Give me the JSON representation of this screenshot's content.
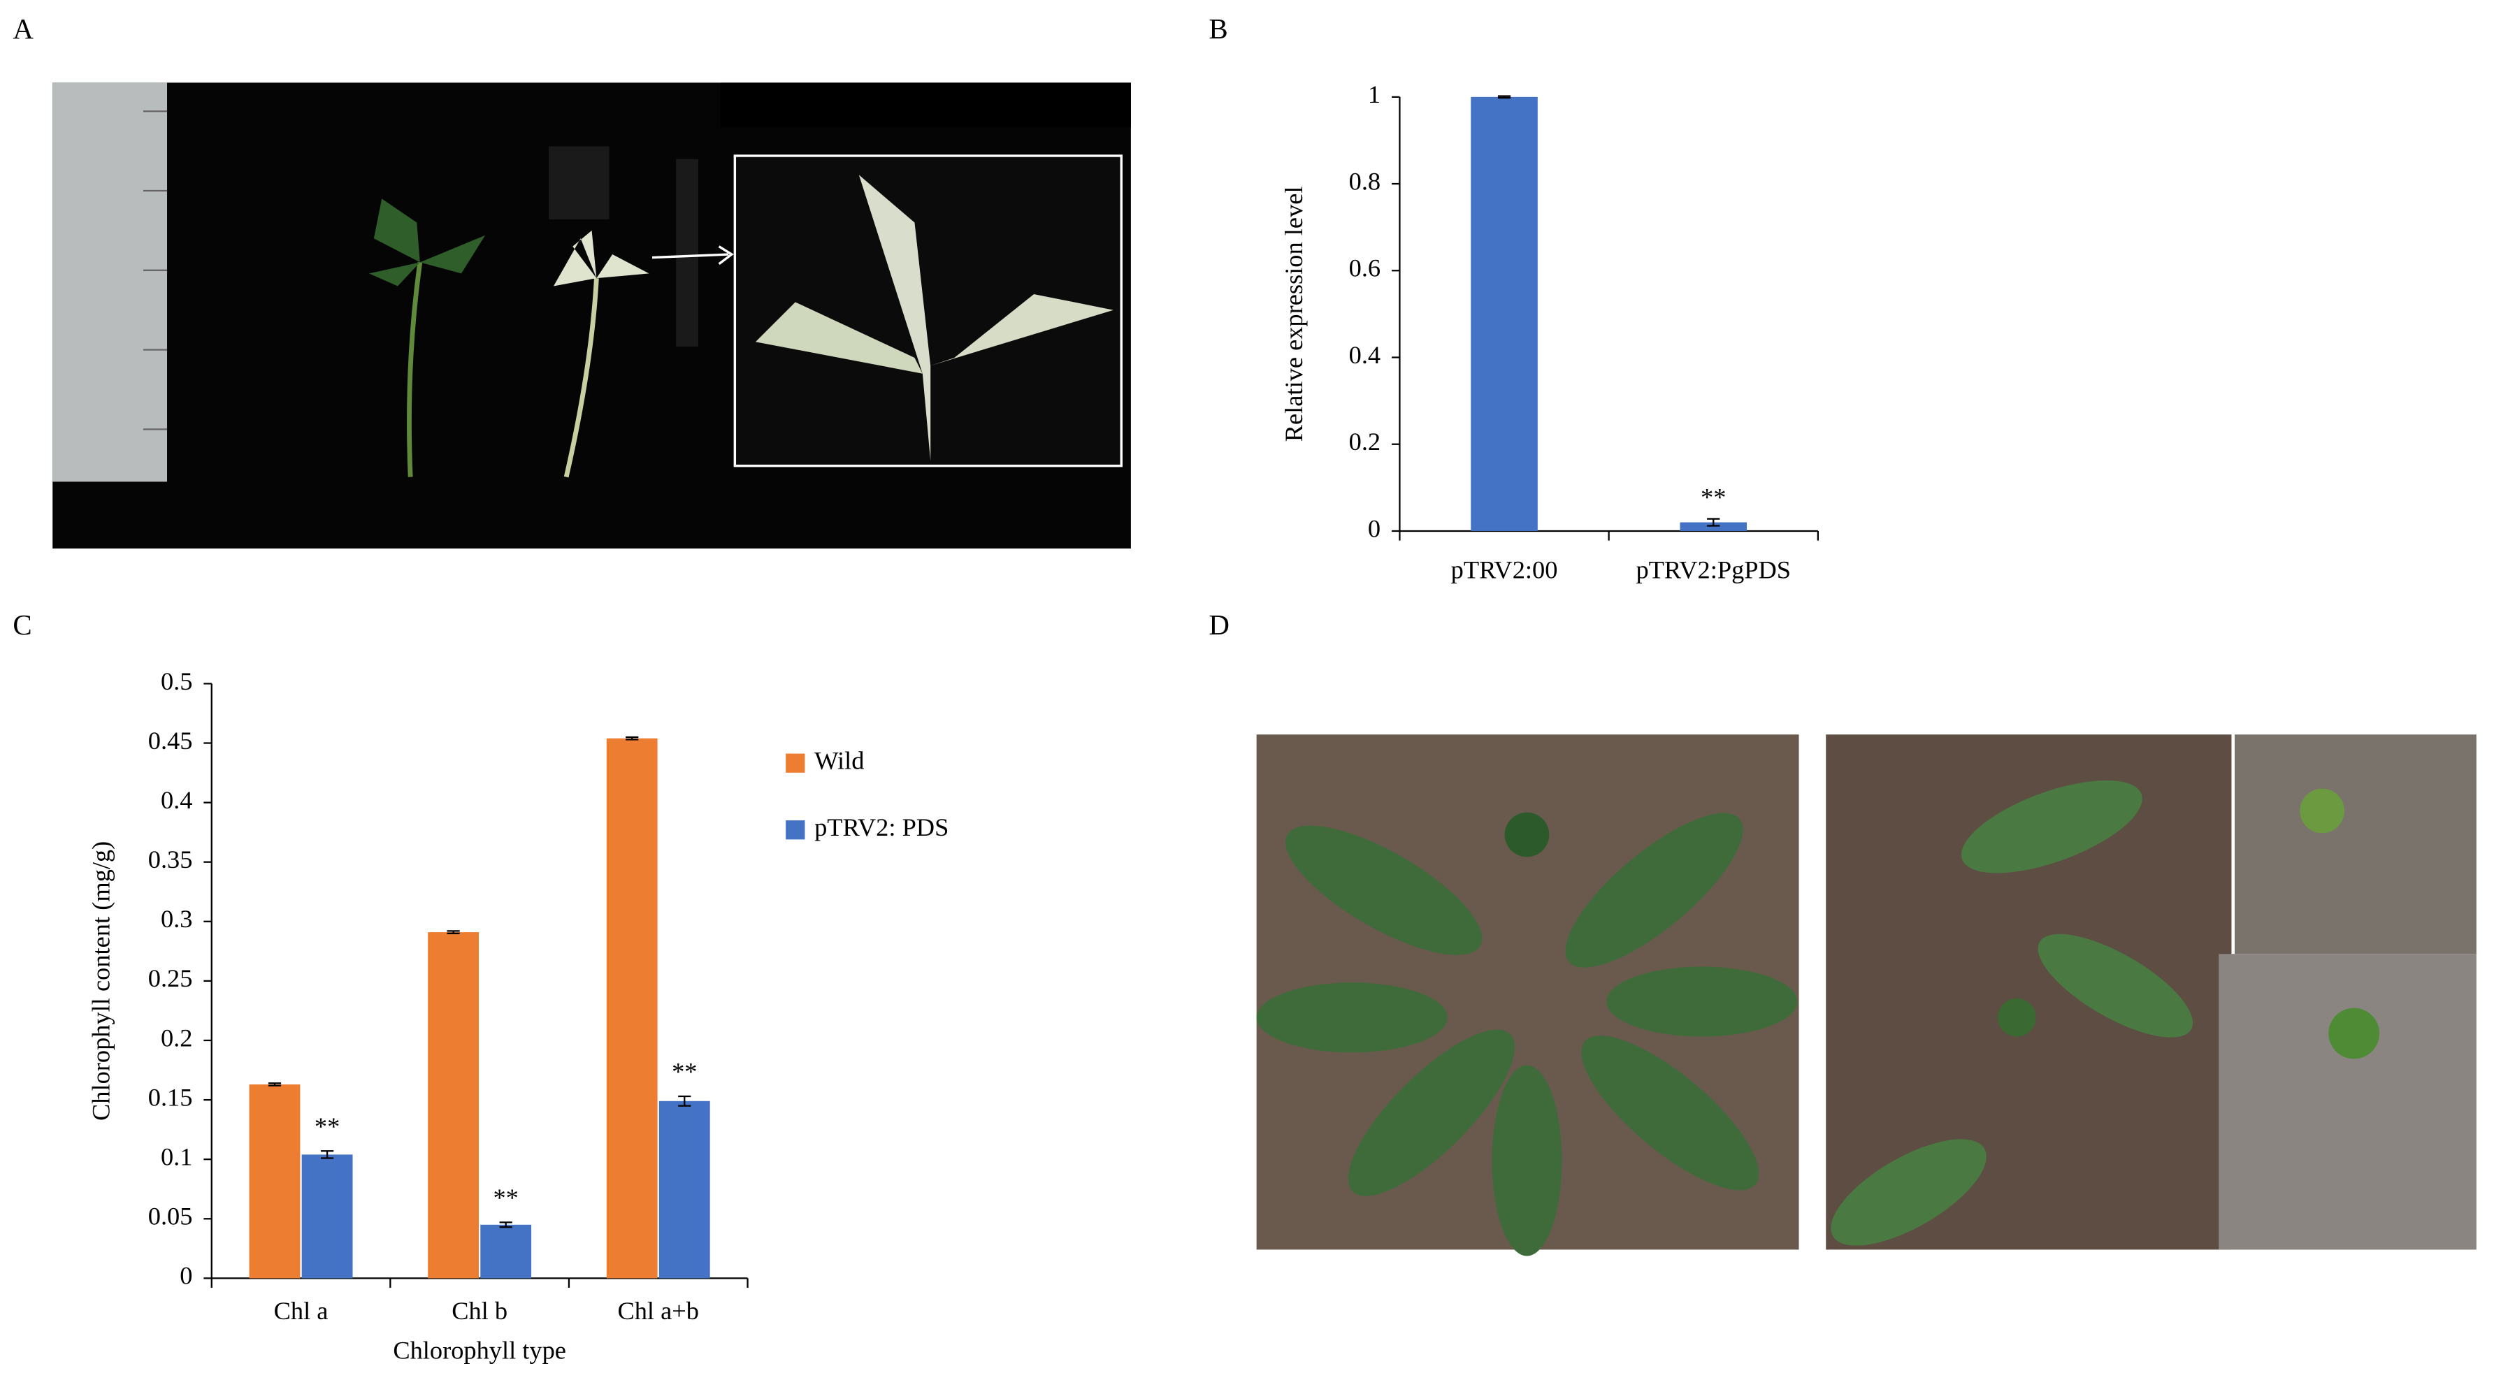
{
  "panel_labels": [
    "A",
    "B",
    "C",
    "D"
  ],
  "chart_data": [
    {
      "type": "bar",
      "y_label": "Relative expression level",
      "categories": [
        "pTRV2:00",
        "pTRV2:PgPDS"
      ],
      "values": [
        1,
        0.02
      ],
      "errors": [
        0.002,
        0.008
      ],
      "color": "#4472c4",
      "annotation": "**",
      "ylim": [
        0,
        1
      ],
      "yticks": [
        0,
        0.2,
        0.4,
        0.6,
        0.8,
        1
      ]
    },
    {
      "type": "grouped_bar",
      "x_label": "Chlorophyll type",
      "y_label": "Chlorophyll content (mg/g)",
      "categories": [
        "Chl a",
        "Chl b",
        "Chl a+b"
      ],
      "series": [
        {
          "name": "Wild",
          "color": "#ed7d31",
          "values": [
            0.163,
            0.291,
            0.454
          ],
          "errors": [
            0.001,
            0.001,
            0.001
          ]
        },
        {
          "name": "pTRV2: PDS",
          "color": "#4472c4",
          "values": [
            0.104,
            0.045,
            0.149
          ],
          "errors": [
            0.003,
            0.002,
            0.004
          ],
          "annotations": [
            "**",
            "**",
            "**"
          ]
        }
      ],
      "ylim": [
        0,
        0.5
      ],
      "yticks": [
        0,
        0.05,
        0.1,
        0.15,
        0.2,
        0.25,
        0.3,
        0.35,
        0.4,
        0.45,
        0.5
      ]
    }
  ]
}
